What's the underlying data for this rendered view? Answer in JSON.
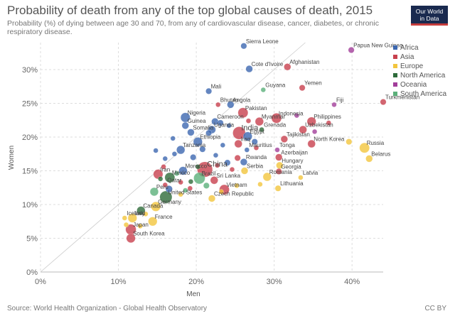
{
  "header": {
    "title": "Probability of death from any of the top global causes of death, 2015",
    "subtitle": "Probability (%) of dying between age 30 and 70, from any of cardiovascular disease, cancer, diabetes, or chronic respiratory disease.",
    "logo_line1": "Our World",
    "logo_line2": "in Data"
  },
  "footer": {
    "source": "Source: World Health Organization - Global Health Observatory",
    "license": "CC BY"
  },
  "colors": {
    "Africa": "#3d68b0",
    "Asia": "#c8404e",
    "Europe": "#f2c53d",
    "North America": "#2e6b3a",
    "Oceania": "#a23e9a",
    "South America": "#5bb07a"
  },
  "chart_data": {
    "type": "scatter",
    "xlabel": "Men",
    "ylabel": "Women",
    "xlim": [
      0,
      44
    ],
    "ylim": [
      0,
      34
    ],
    "x_ticks": [
      0,
      10,
      20,
      30,
      40
    ],
    "y_ticks": [
      0,
      5,
      10,
      15,
      20,
      25,
      30
    ],
    "x_tick_labels": [
      "0%",
      "10%",
      "20%",
      "30%",
      "40%"
    ],
    "y_tick_labels": [
      "0%",
      "5%",
      "10%",
      "15%",
      "20%",
      "25%",
      "30%"
    ],
    "grid": true,
    "diagonal_line": true,
    "legend_position": "right",
    "legend": [
      "Africa",
      "Asia",
      "Europe",
      "North America",
      "Oceania",
      "South America"
    ],
    "points": [
      {
        "label": "Sierra Leone",
        "region": "Africa",
        "x": 26.1,
        "y": 33.5,
        "size": 2
      },
      {
        "label": "Papua New Guinea",
        "region": "Oceania",
        "x": 39.9,
        "y": 32.9,
        "size": 2
      },
      {
        "label": "Cote d'Ivoire",
        "region": "Africa",
        "x": 26.8,
        "y": 30.1,
        "size": 3
      },
      {
        "label": "Afghanistan",
        "region": "Asia",
        "x": 31.7,
        "y": 30.4,
        "size": 3
      },
      {
        "label": "Yemen",
        "region": "Asia",
        "x": 33.6,
        "y": 27.3,
        "size": 2
      },
      {
        "label": "Mali",
        "region": "Africa",
        "x": 21.6,
        "y": 26.8,
        "size": 2
      },
      {
        "label": "Guyana",
        "region": "South America",
        "x": 28.6,
        "y": 27.0,
        "size": 1
      },
      {
        "label": "Turkmenistan",
        "region": "Asia",
        "x": 44.0,
        "y": 25.2,
        "size": 2
      },
      {
        "label": "Fiji",
        "region": "Oceania",
        "x": 37.7,
        "y": 24.8,
        "size": 1
      },
      {
        "label": "Bhutan",
        "region": "Asia",
        "x": 22.8,
        "y": 24.8,
        "size": 1
      },
      {
        "label": "Angola",
        "region": "Africa",
        "x": 24.4,
        "y": 24.8,
        "size": 3
      },
      {
        "label": "Pakistan",
        "region": "Asia",
        "x": 26.0,
        "y": 23.6,
        "size": 8
      },
      {
        "label": "Indonesia",
        "region": "Asia",
        "x": 30.3,
        "y": 22.8,
        "size": 8
      },
      {
        "label": "Nigeria",
        "region": "Africa",
        "x": 18.6,
        "y": 22.9,
        "size": 7
      },
      {
        "label": "Cameroon",
        "region": "Africa",
        "x": 22.4,
        "y": 22.3,
        "size": 3
      },
      {
        "label": "Myanmar",
        "region": "Asia",
        "x": 28.1,
        "y": 22.3,
        "size": 5
      },
      {
        "label": "Philippines",
        "region": "Asia",
        "x": 34.8,
        "y": 22.3,
        "size": 6
      },
      {
        "label": "Guinea",
        "region": "Africa",
        "x": 18.6,
        "y": 21.7,
        "size": 3
      },
      {
        "label": "India",
        "region": "Asia",
        "x": 25.5,
        "y": 20.6,
        "size": 14
      },
      {
        "label": "Uganda",
        "region": "Africa",
        "x": 22.0,
        "y": 21.1,
        "size": 4
      },
      {
        "label": "Grenada",
        "region": "North America",
        "x": 28.4,
        "y": 21.1,
        "size": 1
      },
      {
        "label": "Uzbekistan",
        "region": "Asia",
        "x": 33.7,
        "y": 21.1,
        "size": 4
      },
      {
        "label": "Somalia",
        "region": "Africa",
        "x": 19.3,
        "y": 20.7,
        "size": 3
      },
      {
        "label": "Egypt",
        "region": "Africa",
        "x": 26.6,
        "y": 20.1,
        "size": 6
      },
      {
        "label": "Tajikistan",
        "region": "Asia",
        "x": 31.3,
        "y": 19.7,
        "size": 3
      },
      {
        "label": "Ethiopia",
        "region": "Africa",
        "x": 20.2,
        "y": 19.3,
        "size": 6
      },
      {
        "label": "Iraq",
        "region": "Asia",
        "x": 25.4,
        "y": 19.0,
        "size": 4
      },
      {
        "label": "North Korea",
        "region": "Asia",
        "x": 34.8,
        "y": 19.0,
        "size": 4
      },
      {
        "label": "Russia",
        "region": "Europe",
        "x": 41.6,
        "y": 18.4,
        "size": 8
      },
      {
        "label": "Mauritius",
        "region": "Africa",
        "x": 26.5,
        "y": 18.1,
        "size": 1
      },
      {
        "label": "Tonga",
        "region": "Oceania",
        "x": 30.4,
        "y": 18.1,
        "size": 1
      },
      {
        "label": "Tanzania",
        "region": "Africa",
        "x": 18.0,
        "y": 18.1,
        "size": 5
      },
      {
        "label": "Azerbaijan",
        "region": "Asia",
        "x": 30.6,
        "y": 17.0,
        "size": 3
      },
      {
        "label": "Belarus",
        "region": "Europe",
        "x": 42.2,
        "y": 16.8,
        "size": 3
      },
      {
        "label": "Rwanda",
        "region": "Africa",
        "x": 26.1,
        "y": 16.3,
        "size": 3
      },
      {
        "label": "China",
        "region": "Asia",
        "x": 21.1,
        "y": 15.2,
        "size": 22
      },
      {
        "label": "Hungary",
        "region": "Europe",
        "x": 30.7,
        "y": 15.8,
        "size": 3
      },
      {
        "label": "Morocco",
        "region": "Africa",
        "x": 18.3,
        "y": 15.0,
        "size": 5
      },
      {
        "label": "Serbia",
        "region": "Europe",
        "x": 26.2,
        "y": 15.0,
        "size": 3
      },
      {
        "label": "Georgia",
        "region": "Asia",
        "x": 30.6,
        "y": 14.9,
        "size": 2
      },
      {
        "label": "Iran",
        "region": "Asia",
        "x": 15.1,
        "y": 14.5,
        "size": 7
      },
      {
        "label": "Brazil",
        "region": "South America",
        "x": 20.4,
        "y": 13.9,
        "size": 11
      },
      {
        "label": "Romania",
        "region": "Europe",
        "x": 29.1,
        "y": 14.1,
        "size": 5
      },
      {
        "label": "Latvia",
        "region": "Europe",
        "x": 33.4,
        "y": 14.0,
        "size": 1
      },
      {
        "label": "Mexico",
        "region": "North America",
        "x": 16.6,
        "y": 14.0,
        "size": 8
      },
      {
        "label": "Sri Lanka",
        "region": "Asia",
        "x": 22.3,
        "y": 13.6,
        "size": 4
      },
      {
        "label": "Qatar",
        "region": "Asia",
        "x": 16.0,
        "y": 12.9,
        "size": 1
      },
      {
        "label": "Lithuania",
        "region": "Europe",
        "x": 30.5,
        "y": 12.4,
        "size": 2
      },
      {
        "label": "Vietnam",
        "region": "Asia",
        "x": 23.6,
        "y": 12.2,
        "size": 8
      },
      {
        "label": "Peru",
        "region": "South America",
        "x": 14.6,
        "y": 11.9,
        "size": 5
      },
      {
        "label": "United States",
        "region": "North America",
        "x": 16.1,
        "y": 11.1,
        "size": 13
      },
      {
        "label": "Czech Republic",
        "region": "Europe",
        "x": 22.0,
        "y": 10.9,
        "size": 3
      },
      {
        "label": "Germany",
        "region": "Europe",
        "x": 14.8,
        "y": 9.7,
        "size": 7
      },
      {
        "label": "Canada",
        "region": "North America",
        "x": 12.9,
        "y": 9.1,
        "size": 5
      },
      {
        "label": "Iceland",
        "region": "Europe",
        "x": 10.8,
        "y": 8.0,
        "size": 1
      },
      {
        "label": "Italy",
        "region": "Europe",
        "x": 11.8,
        "y": 8.0,
        "size": 6
      },
      {
        "label": "France",
        "region": "Europe",
        "x": 14.4,
        "y": 7.5,
        "size": 6
      },
      {
        "label": "Japan",
        "region": "Asia",
        "x": 11.6,
        "y": 6.3,
        "size": 9
      },
      {
        "label": "South Korea",
        "region": "Asia",
        "x": 11.6,
        "y": 5.0,
        "size": 6
      },
      {
        "label": "",
        "region": "Africa",
        "x": 23.1,
        "y": 22.1,
        "size": 2
      },
      {
        "label": "",
        "region": "Africa",
        "x": 21.6,
        "y": 20.6,
        "size": 2
      },
      {
        "label": "",
        "region": "Africa",
        "x": 24.2,
        "y": 21.7,
        "size": 1
      },
      {
        "label": "",
        "region": "Africa",
        "x": 20.8,
        "y": 18.2,
        "size": 2
      },
      {
        "label": "",
        "region": "Africa",
        "x": 17.2,
        "y": 17.5,
        "size": 1
      },
      {
        "label": "",
        "region": "Africa",
        "x": 19.6,
        "y": 17.0,
        "size": 2
      },
      {
        "label": "",
        "region": "Africa",
        "x": 23.4,
        "y": 18.8,
        "size": 1
      },
      {
        "label": "",
        "region": "Africa",
        "x": 22.5,
        "y": 17.3,
        "size": 1
      },
      {
        "label": "",
        "region": "Africa",
        "x": 27.5,
        "y": 19.3,
        "size": 2
      },
      {
        "label": "",
        "region": "Africa",
        "x": 14.8,
        "y": 18.0,
        "size": 1
      },
      {
        "label": "",
        "region": "Africa",
        "x": 16.0,
        "y": 16.8,
        "size": 1
      },
      {
        "label": "",
        "region": "Africa",
        "x": 17.0,
        "y": 19.8,
        "size": 1
      },
      {
        "label": "",
        "region": "Africa",
        "x": 24.0,
        "y": 16.2,
        "size": 2
      },
      {
        "label": "",
        "region": "Africa",
        "x": 16.5,
        "y": 12.3,
        "size": 3
      },
      {
        "label": "",
        "region": "Asia",
        "x": 26.7,
        "y": 22.4,
        "size": 1
      },
      {
        "label": "",
        "region": "Asia",
        "x": 25.3,
        "y": 16.9,
        "size": 2
      },
      {
        "label": "",
        "region": "Asia",
        "x": 24.6,
        "y": 15.2,
        "size": 1
      },
      {
        "label": "",
        "region": "Asia",
        "x": 22.7,
        "y": 15.8,
        "size": 1
      },
      {
        "label": "",
        "region": "Asia",
        "x": 18.0,
        "y": 13.3,
        "size": 1
      },
      {
        "label": "",
        "region": "Asia",
        "x": 15.8,
        "y": 15.6,
        "size": 1
      },
      {
        "label": "",
        "region": "Asia",
        "x": 19.2,
        "y": 12.4,
        "size": 1
      },
      {
        "label": "",
        "region": "Asia",
        "x": 27.7,
        "y": 18.4,
        "size": 1
      },
      {
        "label": "",
        "region": "Asia",
        "x": 37.0,
        "y": 22.1,
        "size": 1
      },
      {
        "label": "",
        "region": "Europe",
        "x": 28.2,
        "y": 13.0,
        "size": 1
      },
      {
        "label": "",
        "region": "Europe",
        "x": 25.2,
        "y": 12.8,
        "size": 1
      },
      {
        "label": "",
        "region": "Europe",
        "x": 23.2,
        "y": 11.9,
        "size": 1
      },
      {
        "label": "",
        "region": "Europe",
        "x": 18.0,
        "y": 11.5,
        "size": 1
      },
      {
        "label": "",
        "region": "Europe",
        "x": 39.6,
        "y": 19.3,
        "size": 2
      },
      {
        "label": "",
        "region": "Europe",
        "x": 12.8,
        "y": 6.8,
        "size": 1
      },
      {
        "label": "",
        "region": "Europe",
        "x": 11.0,
        "y": 7.0,
        "size": 1
      },
      {
        "label": "",
        "region": "Europe",
        "x": 13.5,
        "y": 8.6,
        "size": 1
      },
      {
        "label": "",
        "region": "North America",
        "x": 20.2,
        "y": 15.6,
        "size": 1
      },
      {
        "label": "",
        "region": "North America",
        "x": 15.4,
        "y": 13.8,
        "size": 1
      },
      {
        "label": "",
        "region": "North America",
        "x": 19.3,
        "y": 13.4,
        "size": 1
      },
      {
        "label": "",
        "region": "Oceania",
        "x": 35.2,
        "y": 20.8,
        "size": 1
      },
      {
        "label": "",
        "region": "Oceania",
        "x": 32.9,
        "y": 23.2,
        "size": 1
      },
      {
        "label": "",
        "region": "South America",
        "x": 21.3,
        "y": 12.8,
        "size": 2
      },
      {
        "label": "",
        "region": "South America",
        "x": 17.5,
        "y": 14.6,
        "size": 1
      },
      {
        "label": "",
        "region": "South America",
        "x": 18.6,
        "y": 12.1,
        "size": 1
      }
    ]
  }
}
